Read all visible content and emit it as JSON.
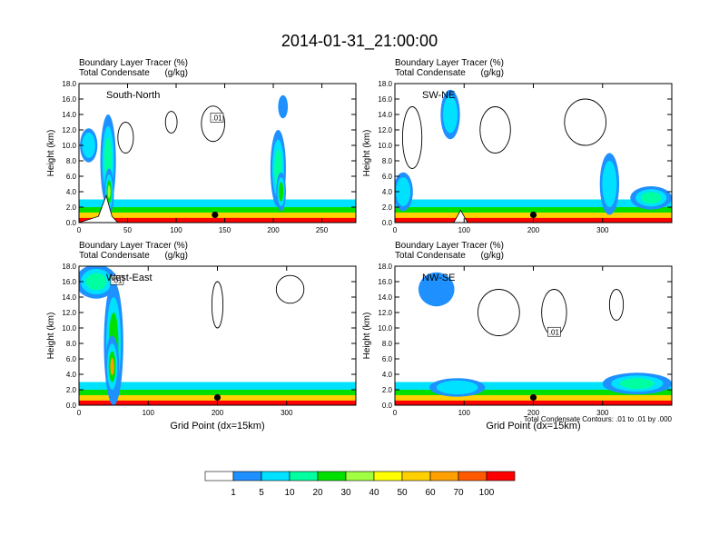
{
  "title": "2014-01-31_21:00:00",
  "colors": {
    "tracer_levels": [
      "#ffffff",
      "#1e90ff",
      "#00e0ff",
      "#00ffa0",
      "#00e000",
      "#a0ff40",
      "#ffff00",
      "#ffd000",
      "#ffa000",
      "#ff5a00",
      "#ff0000"
    ]
  },
  "colorbar": {
    "labels": [
      "1",
      "5",
      "10",
      "20",
      "30",
      "40",
      "50",
      "60",
      "70",
      "100"
    ]
  },
  "contour_note": "Total Condensate Contours: .01 to .01 by .000",
  "chart_data": [
    {
      "type": "heatmap",
      "panel_label": "South-North",
      "subtitle_left": [
        "Boundary Layer Tracer",
        "Total Condensate"
      ],
      "subtitle_units": [
        "(%)",
        "(g/kg)"
      ],
      "ylabel": "Height (km)",
      "xlabel": "",
      "ylim": [
        0,
        18
      ],
      "xlim": [
        0,
        285
      ],
      "y_ticks": [
        "0.0",
        "2.0",
        "4.0",
        "6.0",
        "8.0",
        "10.0",
        "12.0",
        "14.0",
        "16.0",
        "18.0"
      ],
      "x_ticks": [
        0,
        50,
        100,
        150,
        200,
        250
      ],
      "marker": {
        "x": 140,
        "y": 1.0
      },
      "contour_label": ".01",
      "contour_label_pos": {
        "x": 142,
        "y": 13.6
      },
      "terrain": [
        [
          0,
          0
        ],
        [
          20,
          0.8
        ],
        [
          28,
          3.5
        ],
        [
          34,
          0.8
        ],
        [
          40,
          0
        ],
        [
          285,
          0
        ]
      ],
      "plumes": [
        {
          "x": 10,
          "y": 10,
          "rx": 9,
          "ry": 2.2,
          "level": 2
        },
        {
          "x": 30,
          "y": 8,
          "rx": 8,
          "ry": 6,
          "level": 3
        },
        {
          "x": 31,
          "y": 4,
          "rx": 5,
          "ry": 3,
          "level": 5
        },
        {
          "x": 205,
          "y": 7,
          "rx": 8,
          "ry": 5,
          "level": 3
        },
        {
          "x": 208,
          "y": 4,
          "rx": 5,
          "ry": 2.5,
          "level": 4
        },
        {
          "x": 210,
          "y": 15,
          "rx": 5,
          "ry": 1.5,
          "level": 1
        }
      ],
      "clouds": [
        {
          "x": 48,
          "y": 11,
          "rx": 8,
          "ry": 2
        },
        {
          "x": 95,
          "y": 13,
          "rx": 6,
          "ry": 1.4
        },
        {
          "x": 138,
          "y": 12.8,
          "rx": 12,
          "ry": 2.3
        }
      ]
    },
    {
      "type": "heatmap",
      "panel_label": "SW-NE",
      "subtitle_left": [
        "Boundary Layer Tracer",
        "Total Condensate"
      ],
      "subtitle_units": [
        "(%)",
        "(g/kg)"
      ],
      "ylabel": "Height (km)",
      "xlabel": "",
      "ylim": [
        0,
        18
      ],
      "xlim": [
        0,
        400
      ],
      "y_ticks": [
        "0.0",
        "2.0",
        "4.0",
        "6.0",
        "8.0",
        "10.0",
        "12.0",
        "14.0",
        "16.0",
        "18.0"
      ],
      "x_ticks": [
        0,
        100,
        200,
        300
      ],
      "marker": {
        "x": 200,
        "y": 1.0
      },
      "contour_label": "",
      "contour_label_pos": {
        "x": 0,
        "y": 0
      },
      "terrain": [
        [
          0,
          0
        ],
        [
          85,
          0
        ],
        [
          95,
          1.6
        ],
        [
          105,
          0
        ],
        [
          400,
          0
        ]
      ],
      "plumes": [
        {
          "x": 80,
          "y": 14,
          "rx": 14,
          "ry": 3.2,
          "level": 2
        },
        {
          "x": 12,
          "y": 4,
          "rx": 14,
          "ry": 2.5,
          "level": 2
        },
        {
          "x": 310,
          "y": 5,
          "rx": 14,
          "ry": 4,
          "level": 2
        },
        {
          "x": 370,
          "y": 3.2,
          "rx": 30,
          "ry": 1.5,
          "level": 3
        }
      ],
      "clouds": [
        {
          "x": 25,
          "y": 11,
          "rx": 14,
          "ry": 4
        },
        {
          "x": 145,
          "y": 12,
          "rx": 22,
          "ry": 3
        },
        {
          "x": 275,
          "y": 13,
          "rx": 30,
          "ry": 3
        }
      ]
    },
    {
      "type": "heatmap",
      "panel_label": "West-East",
      "subtitle_left": [
        "Boundary Layer Tracer",
        "Total Condensate"
      ],
      "subtitle_units": [
        "(%)",
        "(g/kg)"
      ],
      "ylabel": "Height (km)",
      "xlabel": "Grid Point (dx=15km)",
      "ylim": [
        0,
        18
      ],
      "xlim": [
        0,
        400
      ],
      "y_ticks": [
        "0.0",
        "2.0",
        "4.0",
        "6.0",
        "8.0",
        "10.0",
        "12.0",
        "14.0",
        "16.0",
        "18.0"
      ],
      "x_ticks": [
        0,
        100,
        200,
        300
      ],
      "marker": {
        "x": 200,
        "y": 1.0
      },
      "contour_label": ".01",
      "contour_label_pos": {
        "x": 55,
        "y": 16.2
      },
      "terrain": [
        [
          0,
          0
        ],
        [
          400,
          0
        ]
      ],
      "plumes": [
        {
          "x": 25,
          "y": 16,
          "rx": 30,
          "ry": 2.2,
          "level": 3
        },
        {
          "x": 50,
          "y": 8,
          "rx": 14,
          "ry": 8,
          "level": 4
        },
        {
          "x": 48,
          "y": 5,
          "rx": 10,
          "ry": 4,
          "level": 8
        }
      ],
      "clouds": [
        {
          "x": 200,
          "y": 13,
          "rx": 8,
          "ry": 3
        },
        {
          "x": 305,
          "y": 15,
          "rx": 20,
          "ry": 1.8
        }
      ]
    },
    {
      "type": "heatmap",
      "panel_label": "NW-SE",
      "subtitle_left": [
        "Boundary Layer Tracer",
        "Total Condensate"
      ],
      "subtitle_units": [
        "(%)",
        "(g/kg)"
      ],
      "ylabel": "Height (km)",
      "xlabel": "Grid Point (dx=15km)",
      "ylim": [
        0,
        18
      ],
      "xlim": [
        0,
        400
      ],
      "y_ticks": [
        "0.0",
        "2.0",
        "4.0",
        "6.0",
        "8.0",
        "10.0",
        "12.0",
        "14.0",
        "16.0",
        "18.0"
      ],
      "x_ticks": [
        0,
        100,
        200,
        300
      ],
      "marker": {
        "x": 200,
        "y": 1.0
      },
      "contour_label": ".01",
      "contour_label_pos": {
        "x": 230,
        "y": 9.5
      },
      "terrain": [
        [
          0,
          0
        ],
        [
          400,
          0
        ]
      ],
      "plumes": [
        {
          "x": 60,
          "y": 15,
          "rx": 26,
          "ry": 2.2,
          "level": 1
        },
        {
          "x": 90,
          "y": 2.3,
          "rx": 40,
          "ry": 1.2,
          "level": 2
        },
        {
          "x": 350,
          "y": 2.8,
          "rx": 50,
          "ry": 1.4,
          "level": 3
        }
      ],
      "clouds": [
        {
          "x": 150,
          "y": 12,
          "rx": 30,
          "ry": 3
        },
        {
          "x": 230,
          "y": 12,
          "rx": 18,
          "ry": 3
        },
        {
          "x": 320,
          "y": 13,
          "rx": 10,
          "ry": 2
        }
      ]
    }
  ]
}
